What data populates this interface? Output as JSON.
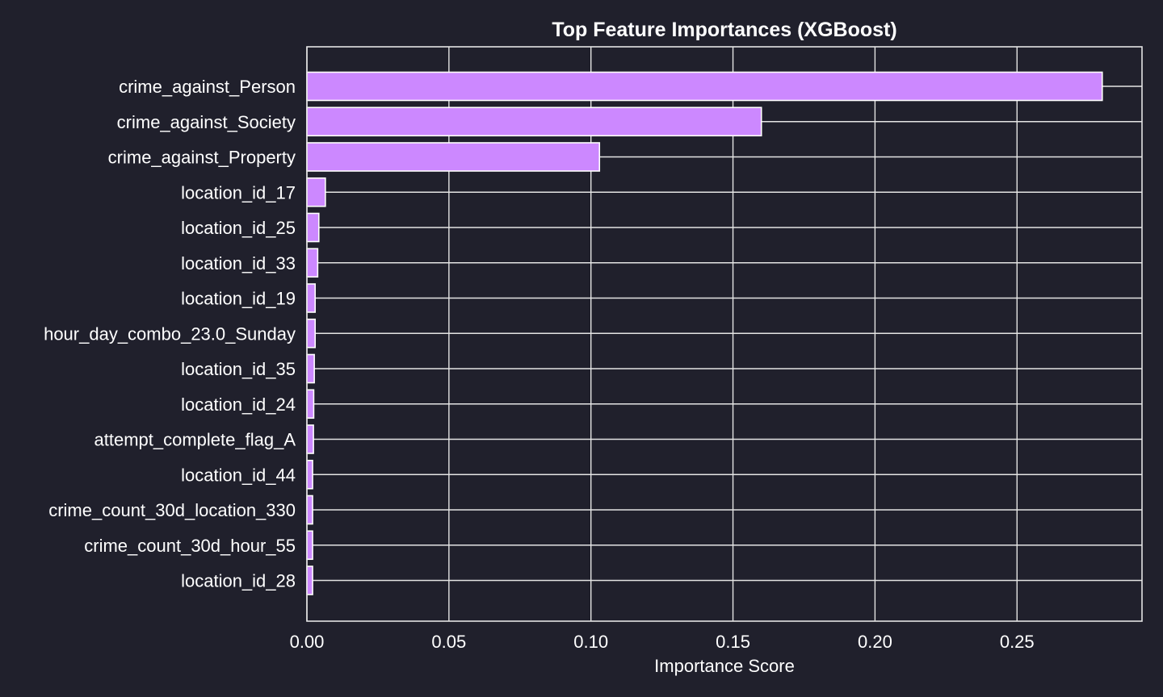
{
  "chart_data": {
    "type": "bar",
    "orientation": "horizontal",
    "title": "Top Feature Importances (XGBoost)",
    "xlabel": "Importance Score",
    "ylabel": "",
    "xlim": [
      0,
      0.294
    ],
    "x_ticks": [
      "0.00",
      "0.05",
      "0.10",
      "0.15",
      "0.20",
      "0.25"
    ],
    "x_tick_values": [
      0,
      0.05,
      0.1,
      0.15,
      0.2,
      0.25
    ],
    "grid": true,
    "bar_color": "#cc88ff",
    "background_color": "#20202c",
    "categories": [
      "crime_against_Person",
      "crime_against_Society",
      "crime_against_Property",
      "location_id_17",
      "location_id_25",
      "location_id_33",
      "location_id_19",
      "hour_day_combo_23.0_Sunday",
      "location_id_35",
      "location_id_24",
      "attempt_complete_flag_A",
      "location_id_44",
      "crime_count_30d_location_330",
      "crime_count_30d_hour_55",
      "location_id_28"
    ],
    "values": [
      0.28,
      0.16,
      0.103,
      0.0065,
      0.0042,
      0.0038,
      0.0029,
      0.0029,
      0.0026,
      0.0024,
      0.0023,
      0.002,
      0.002,
      0.002,
      0.002
    ]
  }
}
